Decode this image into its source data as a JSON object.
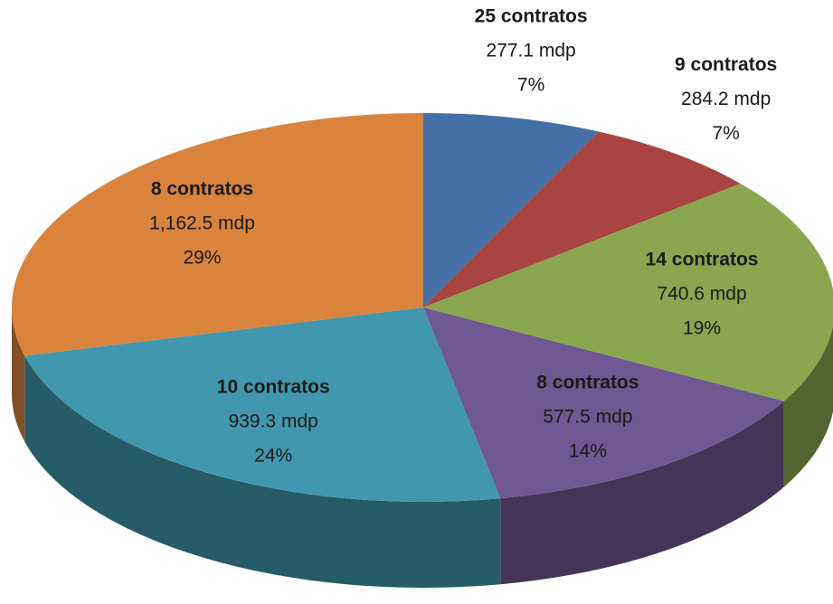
{
  "chart_data": {
    "type": "pie",
    "categories": [
      "25 contratos",
      "9 contratos",
      "14 contratos",
      "8 contratos",
      "10 contratos",
      "8 contratos"
    ],
    "amount_labels": [
      "277.1 mdp",
      "284.2 mdp",
      "740.6 mdp",
      "577.5 mdp",
      "939.3 mdp",
      "1,162.5 mdp"
    ],
    "values": [
      7,
      7,
      19,
      14,
      24,
      29
    ],
    "value_labels": [
      "7%",
      "7%",
      "19%",
      "14%",
      "24%",
      "29%"
    ],
    "colors": [
      "#4570a5",
      "#a84442",
      "#8aa64f",
      "#6f5891",
      "#4198ae",
      "#d9833d"
    ]
  }
}
